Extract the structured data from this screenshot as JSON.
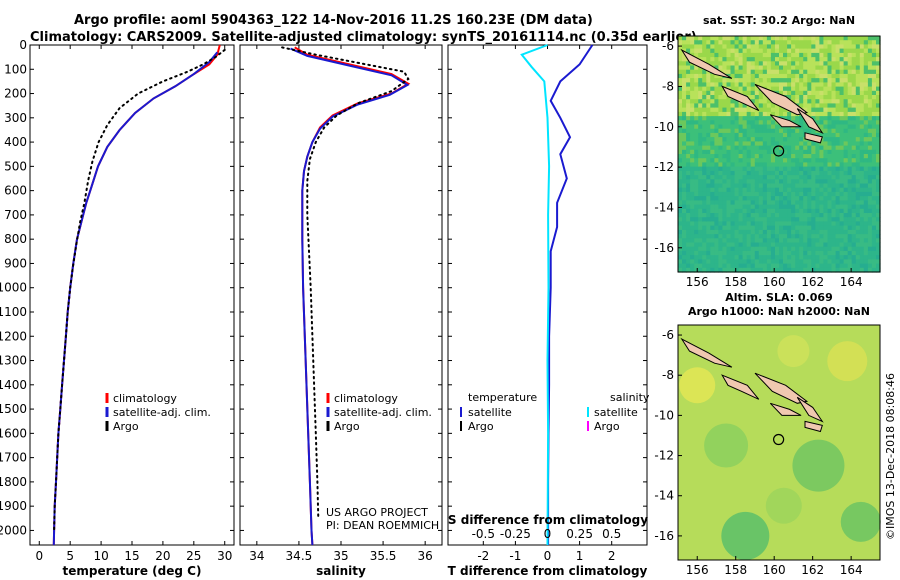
{
  "titles": {
    "line1": "Argo profile: aoml 5904363_122 14-Nov-2016 11.2S 160.23E (DM data)",
    "line2": "Climatology: CARS2009. Satellite-adjusted climatology: synTS_20161114.nc (0.35d earlier)"
  },
  "watermark": "©IMOS 13-Dec-2018 08:08:46",
  "colors": {
    "climatology": "#ff0000",
    "satellite": "#1a1ad0",
    "argo": "#000000",
    "sat_salinity": "#00e5ff",
    "argo_salinity": "#ff00ff"
  },
  "chart_data": [
    {
      "type": "line",
      "name": "temperature-panel",
      "xlabel": "temperature (deg C)",
      "xlim": [
        -1.5,
        31.5
      ],
      "xticks": [
        0,
        5,
        10,
        15,
        20,
        25,
        30
      ],
      "ylim": [
        0,
        2060
      ],
      "yticks": [
        0,
        100,
        200,
        300,
        400,
        500,
        600,
        700,
        800,
        900,
        1000,
        1100,
        1200,
        1300,
        1400,
        1500,
        1600,
        1700,
        1800,
        1900,
        2000
      ],
      "y_reversed": true,
      "legend": [
        "climatology",
        "satellite-adj. clim.",
        "Argo"
      ],
      "series": [
        {
          "name": "climatology",
          "style": "solid",
          "color": "#ff0000",
          "points": [
            [
              29.2,
              0
            ],
            [
              28.8,
              40
            ],
            [
              27.5,
              80
            ],
            [
              25,
              120
            ],
            [
              22,
              170
            ],
            [
              18.5,
              220
            ],
            [
              15.5,
              280
            ],
            [
              13,
              350
            ],
            [
              11,
              420
            ],
            [
              9.5,
              500
            ],
            [
              8.5,
              580
            ],
            [
              7.6,
              650
            ],
            [
              6.8,
              730
            ],
            [
              6.1,
              800
            ],
            [
              5.5,
              900
            ],
            [
              5,
              1000
            ],
            [
              4.6,
              1100
            ],
            [
              4.3,
              1200
            ],
            [
              4,
              1300
            ],
            [
              3.7,
              1400
            ],
            [
              3.4,
              1500
            ],
            [
              3.1,
              1600
            ],
            [
              2.9,
              1700
            ],
            [
              2.7,
              1800
            ],
            [
              2.5,
              1900
            ],
            [
              2.4,
              2000
            ],
            [
              2.35,
              2060
            ]
          ]
        },
        {
          "name": "satellite-adj. clim.",
          "style": "solid",
          "color": "#1a1ad0",
          "points": [
            [
              28.8,
              30
            ],
            [
              27.5,
              70
            ],
            [
              25,
              120
            ],
            [
              22,
              170
            ],
            [
              18.5,
              220
            ],
            [
              15.5,
              280
            ],
            [
              13,
              350
            ],
            [
              11,
              420
            ],
            [
              9.5,
              500
            ],
            [
              8.5,
              580
            ],
            [
              7.6,
              650
            ],
            [
              6.8,
              730
            ],
            [
              6.1,
              800
            ],
            [
              5.5,
              900
            ],
            [
              5,
              1000
            ],
            [
              4.6,
              1100
            ],
            [
              4.3,
              1200
            ],
            [
              4,
              1300
            ],
            [
              3.7,
              1400
            ],
            [
              3.4,
              1500
            ],
            [
              3.1,
              1600
            ],
            [
              2.9,
              1700
            ],
            [
              2.7,
              1800
            ],
            [
              2.5,
              1900
            ],
            [
              2.4,
              2000
            ],
            [
              2.35,
              2060
            ]
          ]
        },
        {
          "name": "Argo",
          "style": "dotted",
          "color": "#000000",
          "points": [
            [
              30,
              20
            ],
            [
              28.5,
              50
            ],
            [
              26.5,
              80
            ],
            [
              24,
              110
            ],
            [
              20,
              150
            ],
            [
              16,
              200
            ],
            [
              13,
              260
            ],
            [
              11,
              330
            ],
            [
              9.6,
              400
            ],
            [
              8.6,
              480
            ],
            [
              7.9,
              560
            ],
            [
              7.3,
              650
            ],
            [
              6.6,
              730
            ],
            [
              6,
              820
            ],
            [
              5.4,
              920
            ],
            [
              5,
              1000
            ],
            [
              4.6,
              1100
            ],
            [
              4.3,
              1200
            ],
            [
              4,
              1300
            ],
            [
              3.7,
              1400
            ],
            [
              3.4,
              1500
            ],
            [
              3.1,
              1600
            ],
            [
              2.9,
              1700
            ],
            [
              2.7,
              1800
            ],
            [
              2.5,
              1900
            ],
            [
              2.4,
              2000
            ]
          ]
        }
      ]
    },
    {
      "type": "line",
      "name": "salinity-panel",
      "xlabel": "salinity",
      "xlim": [
        33.8,
        36.2
      ],
      "xticks": [
        34,
        34.5,
        35,
        35.5,
        36
      ],
      "ylim": [
        0,
        2060
      ],
      "y_reversed": true,
      "legend": [
        "climatology",
        "satellite-adj. clim.",
        "Argo"
      ],
      "annotation": [
        "US ARGO PROJECT",
        "PI: DEAN ROEMMICH"
      ],
      "series": [
        {
          "name": "climatology",
          "style": "solid",
          "color": "#ff0000",
          "points": [
            [
              34.45,
              10
            ],
            [
              34.6,
              40
            ],
            [
              35.1,
              80
            ],
            [
              35.6,
              120
            ],
            [
              35.8,
              160
            ],
            [
              35.6,
              200
            ],
            [
              35.2,
              240
            ],
            [
              34.9,
              290
            ],
            [
              34.75,
              340
            ],
            [
              34.66,
              400
            ],
            [
              34.6,
              460
            ],
            [
              34.56,
              520
            ],
            [
              34.54,
              600
            ],
            [
              34.54,
              800
            ],
            [
              34.55,
              1000
            ],
            [
              34.57,
              1200
            ],
            [
              34.59,
              1400
            ],
            [
              34.61,
              1600
            ],
            [
              34.63,
              1800
            ],
            [
              34.65,
              2000
            ],
            [
              34.66,
              2060
            ]
          ]
        },
        {
          "name": "satellite-adj. clim.",
          "style": "solid",
          "color": "#1a1ad0",
          "points": [
            [
              34.4,
              15
            ],
            [
              34.6,
              45
            ],
            [
              35.1,
              85
            ],
            [
              35.6,
              125
            ],
            [
              35.79,
              165
            ],
            [
              35.58,
              205
            ],
            [
              35.2,
              245
            ],
            [
              34.9,
              295
            ],
            [
              34.75,
              345
            ],
            [
              34.66,
              400
            ],
            [
              34.6,
              460
            ],
            [
              34.56,
              520
            ],
            [
              34.54,
              600
            ],
            [
              34.54,
              800
            ],
            [
              34.55,
              1000
            ],
            [
              34.57,
              1200
            ],
            [
              34.59,
              1400
            ],
            [
              34.61,
              1600
            ],
            [
              34.63,
              1800
            ],
            [
              34.65,
              2000
            ],
            [
              34.66,
              2060
            ]
          ]
        },
        {
          "name": "Argo",
          "style": "dotted",
          "color": "#000000",
          "points": [
            [
              34.3,
              10
            ],
            [
              34.7,
              40
            ],
            [
              35.3,
              80
            ],
            [
              35.75,
              110
            ],
            [
              35.8,
              140
            ],
            [
              35.6,
              190
            ],
            [
              35.2,
              240
            ],
            [
              34.95,
              290
            ],
            [
              34.8,
              340
            ],
            [
              34.7,
              400
            ],
            [
              34.63,
              470
            ],
            [
              34.6,
              560
            ],
            [
              34.6,
              700
            ],
            [
              34.62,
              850
            ],
            [
              34.64,
              1000
            ],
            [
              34.66,
              1200
            ],
            [
              34.68,
              1400
            ],
            [
              34.7,
              1600
            ],
            [
              34.72,
              1800
            ],
            [
              34.73,
              1950
            ]
          ]
        }
      ]
    },
    {
      "type": "line",
      "name": "difference-panel",
      "xlabel": "T difference from climatology",
      "xlabel2": "S difference from climatology",
      "xlim": [
        -3.1,
        3.1
      ],
      "xticks": [
        -2,
        -1,
        0,
        1,
        2
      ],
      "xticks2": [
        "-0.5",
        "-0.25",
        "0",
        "0.25",
        "0.5"
      ],
      "ylim": [
        0,
        2060
      ],
      "y_reversed": true,
      "legend_temperature_title": "temperature",
      "legend_salinity_title": "salinity",
      "legend_temperature": [
        "satellite",
        "Argo"
      ],
      "legend_salinity": [
        "satellite",
        "Argo"
      ],
      "series": [
        {
          "name": "temperature satellite",
          "style": "solid",
          "color": "#1a1ad0",
          "points": [
            [
              1.4,
              0
            ],
            [
              1.0,
              80
            ],
            [
              0.4,
              150
            ],
            [
              0.1,
              230
            ],
            [
              0.4,
              300
            ],
            [
              0.7,
              380
            ],
            [
              0.4,
              450
            ],
            [
              0.6,
              550
            ],
            [
              0.3,
              650
            ],
            [
              0.3,
              750
            ],
            [
              0.1,
              850
            ],
            [
              0.1,
              1000
            ],
            [
              0.05,
              1200
            ],
            [
              0.05,
              1400
            ],
            [
              0.03,
              1600
            ],
            [
              0.02,
              1800
            ],
            [
              0.02,
              2060
            ]
          ]
        },
        {
          "name": "salinity satellite",
          "style": "solid",
          "color": "#00e5ff",
          "points": [
            [
              0,
              0
            ],
            [
              -0.8,
              40
            ],
            [
              -0.5,
              90
            ],
            [
              -0.1,
              150
            ],
            [
              0,
              300
            ],
            [
              0.05,
              500
            ],
            [
              0.02,
              700
            ],
            [
              0.03,
              1000
            ],
            [
              0,
              1300
            ],
            [
              0.02,
              1600
            ],
            [
              0,
              2060
            ]
          ]
        }
      ]
    },
    {
      "type": "heatmap",
      "name": "sst-map",
      "title": "sat. SST: 30.2 Argo: NaN",
      "xticks": [
        156,
        158,
        160,
        162,
        164
      ],
      "yticks": [
        -6,
        -8,
        -10,
        -12,
        -14,
        -16
      ],
      "xlim": [
        155,
        165.5
      ],
      "ylim": [
        -17.2,
        -5.5
      ]
    },
    {
      "type": "heatmap",
      "name": "sla-map",
      "title_line1": "Altim. SLA: 0.069",
      "title_line2": "Argo h1000: NaN h2000: NaN",
      "xticks": [
        156,
        158,
        160,
        162,
        164
      ],
      "yticks": [
        -6,
        -8,
        -10,
        -12,
        -14,
        -16
      ],
      "xlim": [
        155,
        165.5
      ],
      "ylim": [
        -17.2,
        -5.5
      ]
    }
  ]
}
